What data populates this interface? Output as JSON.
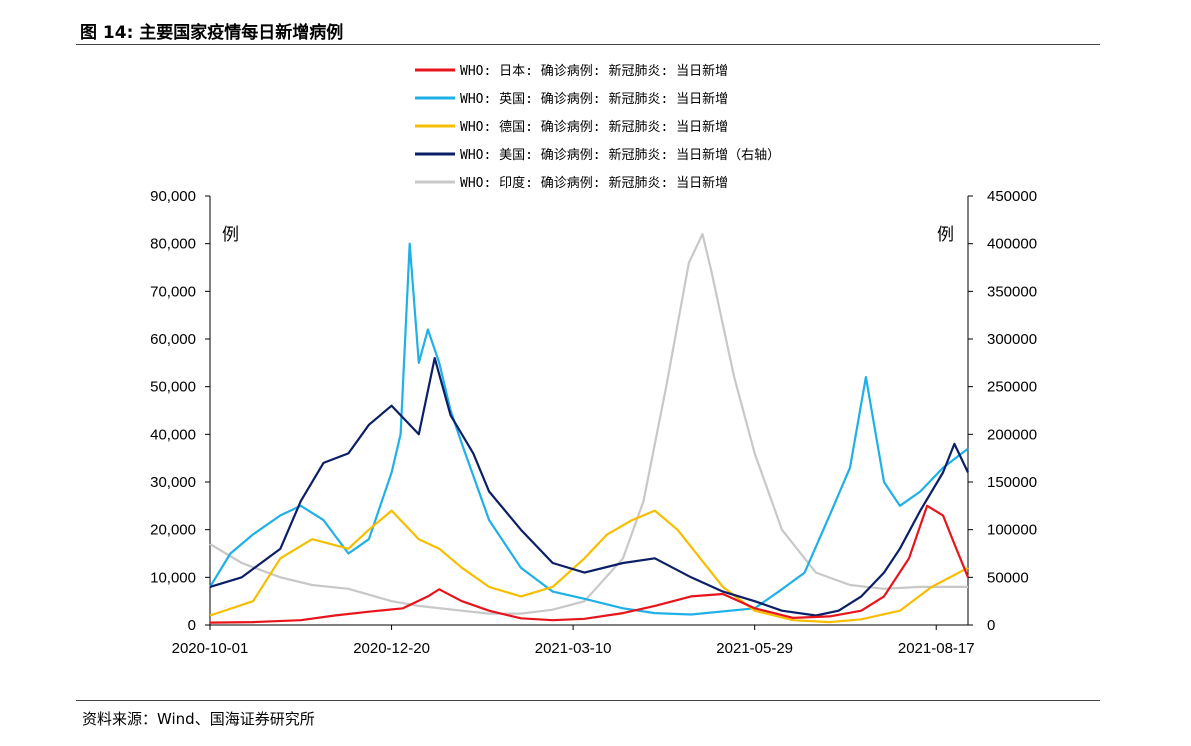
{
  "header": {
    "title": "图 14:  主要国家疫情每日新增病例"
  },
  "footer": {
    "source": "资料来源：Wind、国海证券研究所"
  },
  "chart_data": {
    "type": "line",
    "left_unit": "例",
    "right_unit": "例",
    "y_left": {
      "lim": [
        0,
        90000
      ],
      "ticks": [
        0,
        10000,
        20000,
        30000,
        40000,
        50000,
        60000,
        70000,
        80000,
        90000
      ],
      "tick_labels": [
        "0",
        "10,000",
        "20,000",
        "30,000",
        "40,000",
        "50,000",
        "60,000",
        "70,000",
        "80,000",
        "90,000"
      ]
    },
    "y_right": {
      "lim": [
        0,
        450000
      ],
      "ticks": [
        0,
        50000,
        100000,
        150000,
        200000,
        250000,
        300000,
        350000,
        400000,
        450000
      ],
      "tick_labels": [
        "0",
        "50000",
        "100000",
        "150000",
        "200000",
        "250000",
        "300000",
        "350000",
        "400000",
        "450000"
      ]
    },
    "x": {
      "start": "2020-10-01",
      "end": "2021-08-31",
      "tick_labels": [
        "2020-10-01",
        "2020-12-20",
        "2021-03-10",
        "2021-05-29",
        "2021-08-17"
      ]
    },
    "legend_position": "top-center",
    "series": [
      {
        "name": "WHO: 日本: 确诊病例: 新冠肺炎: 当日新增",
        "color": "#e8141b",
        "axis": "left",
        "dates": [
          "2020-10-01",
          "2020-10-20",
          "2020-11-10",
          "2020-11-25",
          "2020-12-10",
          "2020-12-25",
          "2021-01-05",
          "2021-01-10",
          "2021-01-20",
          "2021-02-01",
          "2021-02-15",
          "2021-03-01",
          "2021-03-15",
          "2021-04-01",
          "2021-04-15",
          "2021-05-01",
          "2021-05-15",
          "2021-05-29",
          "2021-06-15",
          "2021-07-01",
          "2021-07-15",
          "2021-07-25",
          "2021-08-05",
          "2021-08-13",
          "2021-08-20",
          "2021-08-25",
          "2021-08-31"
        ],
        "values": [
          500,
          600,
          1000,
          2000,
          2800,
          3500,
          6000,
          7500,
          5000,
          3000,
          1400,
          1000,
          1300,
          2500,
          4000,
          6000,
          6500,
          3500,
          1500,
          1800,
          3000,
          6000,
          14000,
          25000,
          23000,
          17000,
          10000
        ]
      },
      {
        "name": "WHO: 英国: 确诊病例: 新冠肺炎: 当日新增",
        "color": "#1fb0e6",
        "axis": "left",
        "dates": [
          "2020-10-01",
          "2020-10-10",
          "2020-10-20",
          "2020-11-01",
          "2020-11-10",
          "2020-11-20",
          "2020-12-01",
          "2020-12-10",
          "2020-12-20",
          "2020-12-24",
          "2020-12-28",
          "2021-01-01",
          "2021-01-05",
          "2021-01-10",
          "2021-01-15",
          "2021-01-20",
          "2021-02-01",
          "2021-02-15",
          "2021-03-01",
          "2021-03-15",
          "2021-04-01",
          "2021-04-15",
          "2021-05-01",
          "2021-05-29",
          "2021-06-10",
          "2021-06-20",
          "2021-07-01",
          "2021-07-10",
          "2021-07-17",
          "2021-07-25",
          "2021-08-01",
          "2021-08-10",
          "2021-08-20",
          "2021-08-31"
        ],
        "values": [
          8000,
          15000,
          19000,
          23000,
          25000,
          22000,
          15000,
          18000,
          32000,
          40000,
          80000,
          55000,
          62000,
          55000,
          45000,
          38000,
          22000,
          12000,
          7000,
          5500,
          3500,
          2500,
          2200,
          3500,
          7500,
          11000,
          23000,
          33000,
          52000,
          30000,
          25000,
          28000,
          33000,
          37000
        ]
      },
      {
        "name": "WHO: 德国: 确诊病例: 新冠肺炎: 当日新增",
        "color": "#f7be00",
        "axis": "left",
        "dates": [
          "2020-10-01",
          "2020-10-20",
          "2020-11-01",
          "2020-11-15",
          "2020-12-01",
          "2020-12-10",
          "2020-12-20",
          "2021-01-01",
          "2021-01-10",
          "2021-01-20",
          "2021-02-01",
          "2021-02-15",
          "2021-03-01",
          "2021-03-15",
          "2021-03-25",
          "2021-04-05",
          "2021-04-15",
          "2021-04-25",
          "2021-05-05",
          "2021-05-15",
          "2021-05-29",
          "2021-06-15",
          "2021-07-01",
          "2021-07-15",
          "2021-08-01",
          "2021-08-15",
          "2021-08-31"
        ],
        "values": [
          2000,
          5000,
          14000,
          18000,
          16000,
          20000,
          24000,
          18000,
          16000,
          12000,
          8000,
          6000,
          8000,
          14000,
          19000,
          22000,
          24000,
          20000,
          14000,
          8000,
          3000,
          1000,
          600,
          1200,
          3000,
          8000,
          12000
        ]
      },
      {
        "name": "WHO: 美国: 确诊病例: 新冠肺炎: 当日新增（右轴）",
        "color": "#0a1f66",
        "axis": "right",
        "dates": [
          "2020-10-01",
          "2020-10-15",
          "2020-11-01",
          "2020-11-10",
          "2020-11-20",
          "2020-12-01",
          "2020-12-10",
          "2020-12-20",
          "2021-01-01",
          "2021-01-08",
          "2021-01-15",
          "2021-01-25",
          "2021-02-01",
          "2021-02-15",
          "2021-03-01",
          "2021-03-15",
          "2021-04-01",
          "2021-04-15",
          "2021-05-01",
          "2021-05-15",
          "2021-05-29",
          "2021-06-10",
          "2021-06-25",
          "2021-07-05",
          "2021-07-15",
          "2021-07-25",
          "2021-08-01",
          "2021-08-10",
          "2021-08-20",
          "2021-08-25",
          "2021-08-31"
        ],
        "values": [
          40000,
          50000,
          80000,
          130000,
          170000,
          180000,
          210000,
          230000,
          200000,
          280000,
          220000,
          180000,
          140000,
          100000,
          65000,
          55000,
          65000,
          70000,
          50000,
          35000,
          25000,
          15000,
          10000,
          15000,
          30000,
          55000,
          80000,
          120000,
          160000,
          190000,
          160000
        ]
      },
      {
        "name": "WHO: 印度: 确诊病例: 新冠肺炎: 当日新增",
        "color": "#c8c8c8",
        "axis": "right",
        "dates": [
          "2020-10-01",
          "2020-10-15",
          "2020-11-01",
          "2020-11-15",
          "2020-12-01",
          "2020-12-20",
          "2021-01-01",
          "2021-01-20",
          "2021-02-01",
          "2021-02-15",
          "2021-03-01",
          "2021-03-15",
          "2021-04-01",
          "2021-04-10",
          "2021-04-20",
          "2021-04-30",
          "2021-05-06",
          "2021-05-10",
          "2021-05-20",
          "2021-05-29",
          "2021-06-10",
          "2021-06-25",
          "2021-07-10",
          "2021-07-25",
          "2021-08-10",
          "2021-08-31"
        ],
        "values": [
          85000,
          65000,
          50000,
          42000,
          38000,
          25000,
          20000,
          15000,
          12000,
          12000,
          16000,
          25000,
          70000,
          130000,
          250000,
          380000,
          410000,
          370000,
          260000,
          180000,
          100000,
          55000,
          42000,
          38000,
          40000,
          40000
        ]
      }
    ]
  }
}
